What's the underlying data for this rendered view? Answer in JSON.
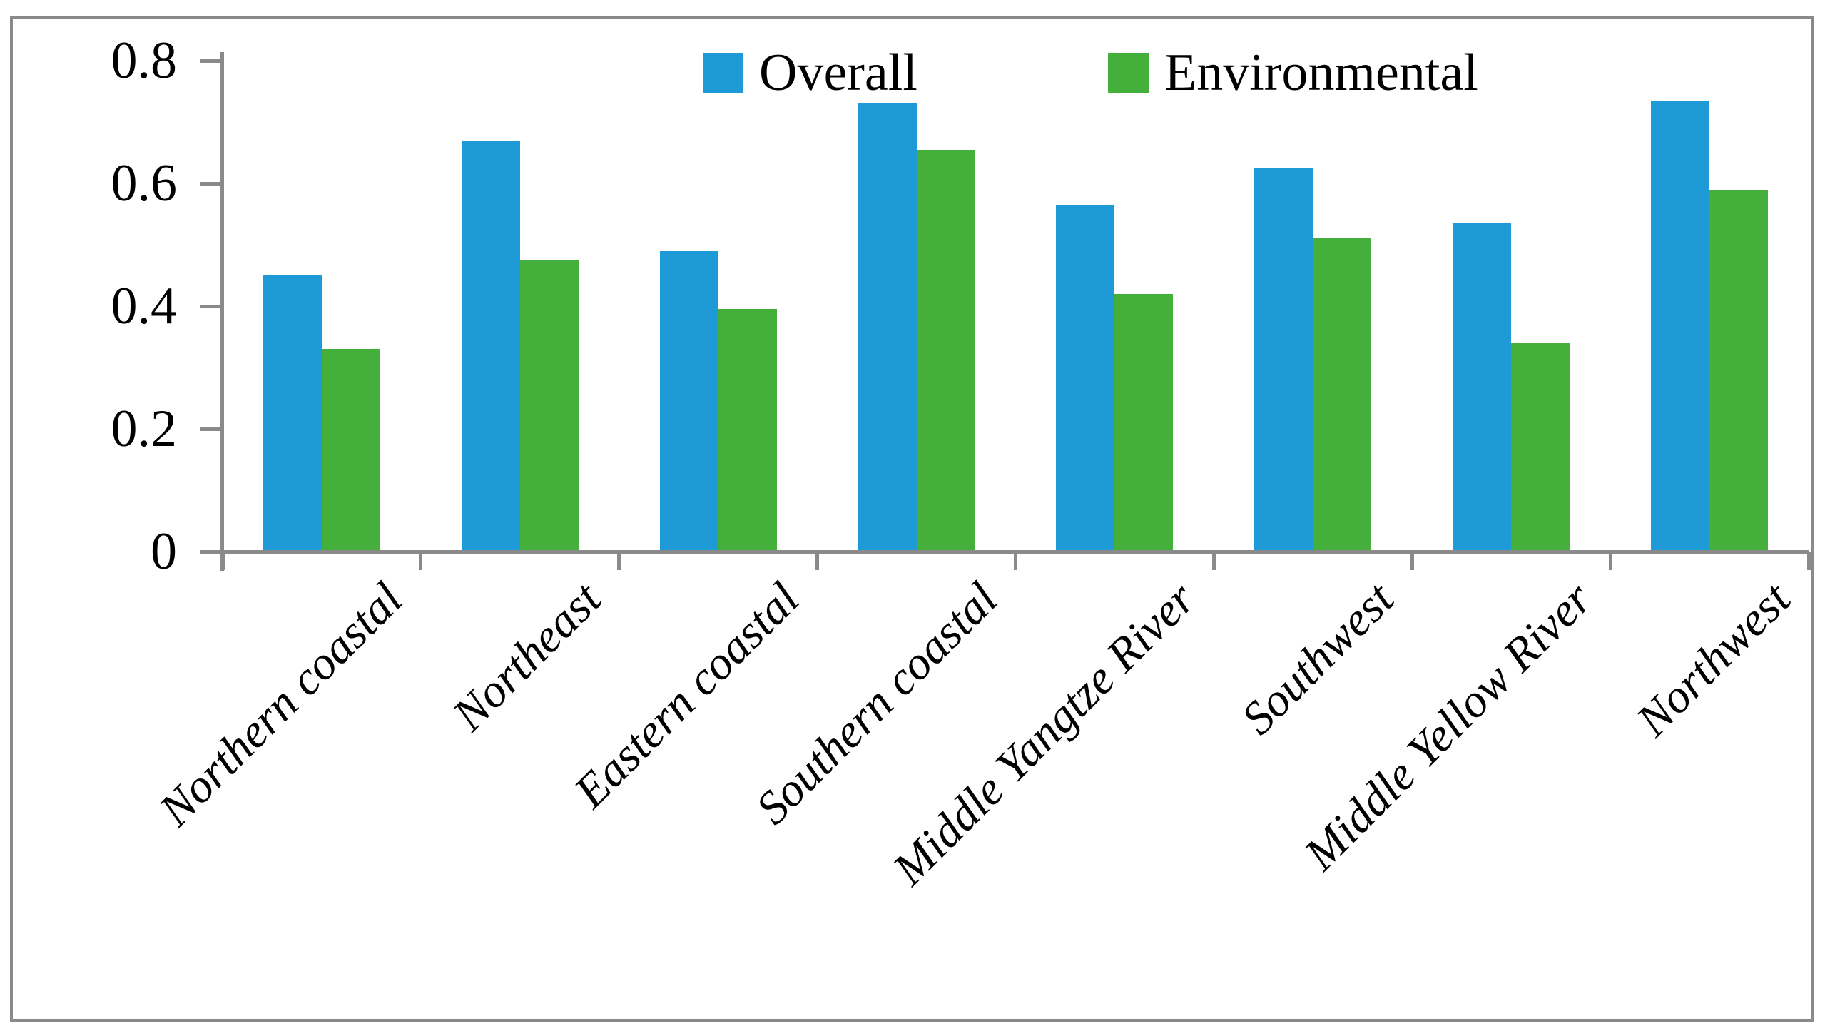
{
  "figure": {
    "background_color": "#ffffff",
    "frame_color": "#8a8a8a",
    "axis_color": "#8a8a8a",
    "text_color": "#000000"
  },
  "legend": {
    "items": [
      {
        "label": "Overall",
        "color": "#1e9bd7"
      },
      {
        "label": "Environmental",
        "color": "#44af3a"
      }
    ]
  },
  "chart_data": {
    "type": "bar",
    "title": "",
    "xlabel": "",
    "ylabel": "",
    "categories": [
      "Northern coastal",
      "Northeast",
      "Eastern coastal",
      "Southern coastal",
      "Middle Yangtze River",
      "Southwest",
      "Middle Yellow River",
      "Northwest"
    ],
    "series": [
      {
        "name": "Overall",
        "color": "#1e9bd7",
        "values": [
          0.45,
          0.67,
          0.49,
          0.73,
          0.565,
          0.625,
          0.535,
          0.735
        ]
      },
      {
        "name": "Environmental",
        "color": "#44af3a",
        "values": [
          0.33,
          0.475,
          0.395,
          0.655,
          0.42,
          0.51,
          0.34,
          0.59
        ]
      }
    ],
    "ylim": [
      0,
      0.8
    ],
    "yticks": [
      0,
      0.2,
      0.4,
      0.6,
      0.8
    ],
    "ytick_labels": [
      "0",
      "0.2",
      "0.4",
      "0.6",
      "0.8"
    ],
    "grid": false,
    "legend_position": "top-center"
  }
}
